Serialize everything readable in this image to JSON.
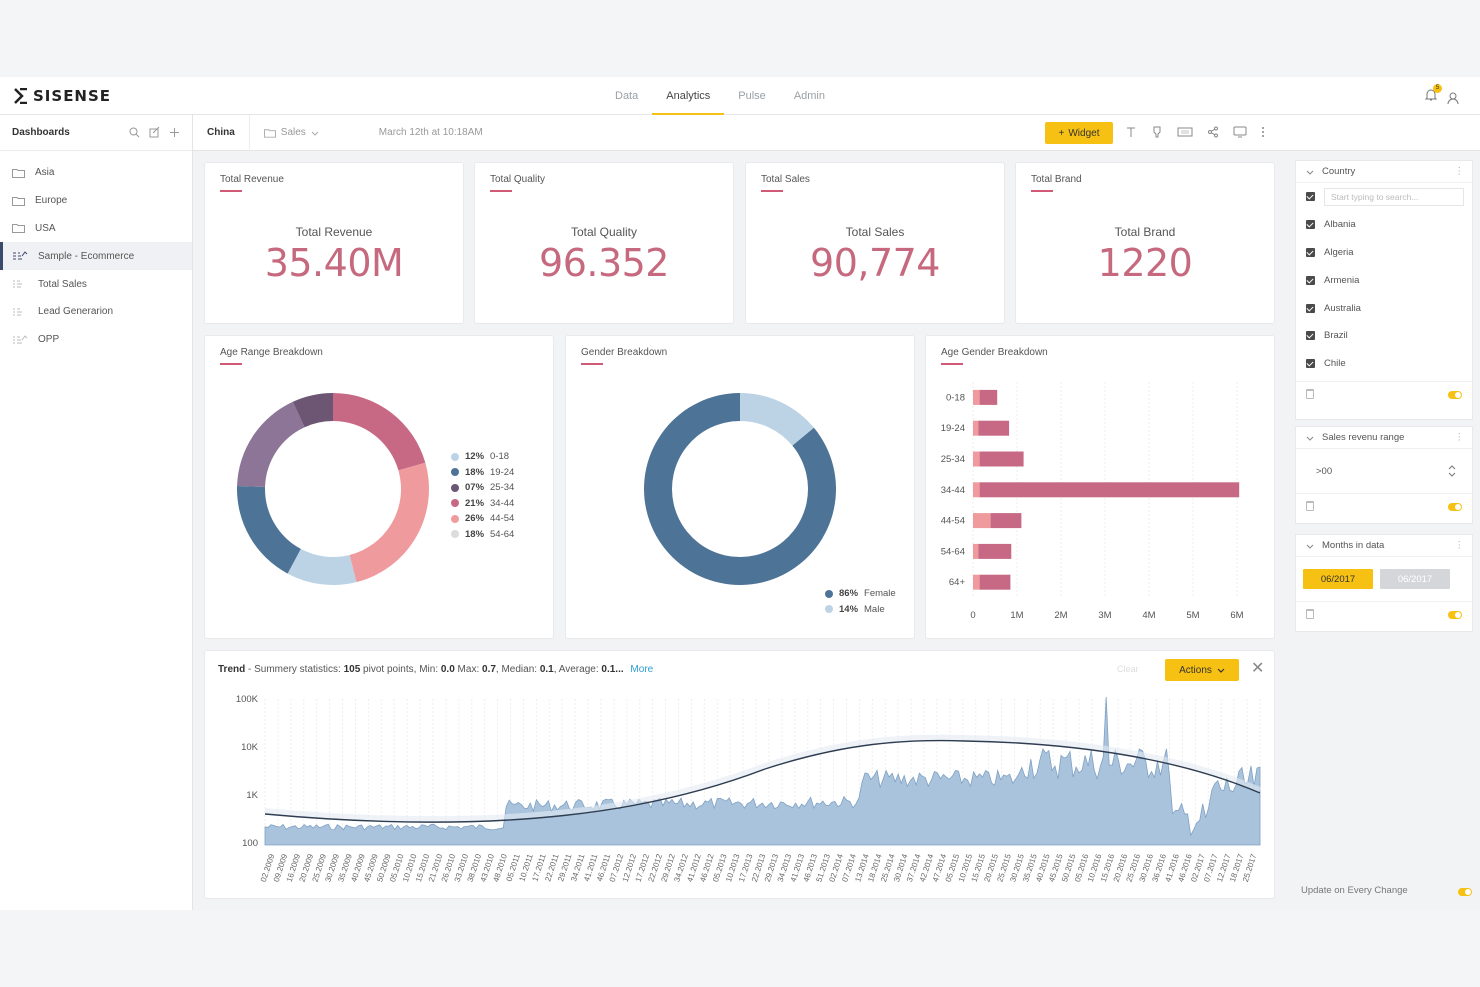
{
  "app": {
    "logo_text": "SISENSE",
    "notification_count": "5"
  },
  "nav": {
    "tabs": [
      {
        "label": "Data"
      },
      {
        "label": "Analytics"
      },
      {
        "label": "Pulse"
      },
      {
        "label": "Admin"
      }
    ],
    "active": "Analytics"
  },
  "sidebar": {
    "title": "Dashboards",
    "items": [
      {
        "label": "Asia",
        "icon": "folder-icon"
      },
      {
        "label": "Europe",
        "icon": "folder-icon"
      },
      {
        "label": "USA",
        "icon": "folder-icon"
      },
      {
        "label": "Sample - Ecommerce",
        "icon": "dashboard-icon"
      },
      {
        "label": "Total Sales",
        "icon": "dashboard-icon"
      },
      {
        "label": "Lead Generarion",
        "icon": "dashboard-icon"
      },
      {
        "label": "OPP",
        "icon": "dashboard-icon"
      }
    ],
    "active": "Sample - Ecommerce"
  },
  "toolbar": {
    "crumb": "China",
    "folder": "Sales",
    "date": "March 12th at 10:18AM",
    "widget_label": "Widget"
  },
  "kpis": [
    {
      "title": "Total Revenue",
      "label": "Total Revenue",
      "value": "35.40M"
    },
    {
      "title": "Total Quality",
      "label": "Total Quality",
      "value": "96.352"
    },
    {
      "title": "Total Sales",
      "label": "Total Sales",
      "value": "90,774"
    },
    {
      "title": "Total Brand",
      "label": "Total Brand",
      "value": "1220"
    }
  ],
  "charts": {
    "age_range": {
      "title": "Age Range Breakdown",
      "chart_data": {
        "type": "pie",
        "slices": [
          {
            "pct": "12%",
            "label": "0-18",
            "value": 12,
            "color": "#bcd3e6"
          },
          {
            "pct": "18%",
            "label": "19-24",
            "value": 18,
            "color": "#4d7396"
          },
          {
            "pct": "07%",
            "label": "25-34",
            "value": 7,
            "color": "#6c5674"
          },
          {
            "pct": "21%",
            "label": "34-44",
            "value": 21,
            "color": "#c76985"
          },
          {
            "pct": "26%",
            "label": "44-54",
            "value": 26,
            "color": "#ef9b9e"
          },
          {
            "pct": "18%",
            "label": "54-64",
            "value": 18,
            "color": "#dcdcdc"
          }
        ]
      }
    },
    "gender": {
      "title": "Gender Breakdown",
      "chart_data": {
        "type": "pie",
        "slices": [
          {
            "pct": "86%",
            "label": "Female",
            "value": 86,
            "color": "#4d7396"
          },
          {
            "pct": "14%",
            "label": "Male",
            "value": 14,
            "color": "#bcd3e6"
          }
        ]
      }
    },
    "age_gender": {
      "title": "Age Gender Breakdown",
      "chart_data": {
        "type": "bar",
        "orientation": "horizontal",
        "categories": [
          "0-18",
          "19-24",
          "25-34",
          "34-44",
          "44-54",
          "54-64",
          "64+"
        ],
        "series": [
          {
            "values": [
              0.15,
              0.12,
              0.15,
              0.15,
              0.4,
              0.12,
              0.15
            ],
            "color": "#ef9b9e"
          },
          {
            "values": [
              0.4,
              0.7,
              1.0,
              5.9,
              0.7,
              0.75,
              0.7
            ],
            "color": "#c76985"
          }
        ],
        "xticks": [
          "0",
          "1M",
          "2M",
          "3M",
          "4M",
          "5M",
          "6M"
        ],
        "xlim": [
          0,
          6
        ]
      }
    },
    "trend": {
      "summary_prefix": "Trend",
      "summary_text": " - Summery statistics: ",
      "pivot_count": "105",
      "pivot_text": " pivot points, Min: ",
      "min": "0.0",
      "max_label": " Max: ",
      "max": "0.7",
      "median_label": ", Median: ",
      "median": "0.1",
      "average_label": ", Average: ",
      "average": "0.1...",
      "more": "More",
      "clear": "Clear",
      "actions_label": "Actions",
      "chart_data": {
        "type": "area",
        "scale": "log",
        "yticks": [
          "100K",
          "10K",
          "1K",
          "100"
        ],
        "xticks": [
          "02.2009",
          "09.2009",
          "16.2009",
          "20.2009",
          "25.2009",
          "30.2009",
          "35.2009",
          "40.2009",
          "45.2009",
          "50.2009",
          "05.2010",
          "10.2010",
          "15.2010",
          "21.2010",
          "26.2010",
          "33.2010",
          "38.2010",
          "43.2010",
          "48.2010",
          "05.2011",
          "10.2011",
          "17.2011",
          "22.2011",
          "29.2011",
          "34.2011",
          "41.2011",
          "46.2011",
          "07.2012",
          "12.2012",
          "17.2012",
          "22.2012",
          "29.2012",
          "34.2012",
          "41.2012",
          "46.2012",
          "05.2013",
          "10.2013",
          "17.2013",
          "22.2013",
          "29.2013",
          "34.2013",
          "41.2013",
          "46.2013",
          "51.2013",
          "02.2014",
          "07.2014",
          "13.2014",
          "18.2014",
          "25.2014",
          "30.2014",
          "37.2014",
          "42.2014",
          "47.2014",
          "05.2015",
          "10.2015",
          "15.2015",
          "20.2015",
          "25.2015",
          "30.2015",
          "35.2015",
          "40.2015",
          "45.2015",
          "50.2015",
          "05.2016",
          "10.2016",
          "15.2016",
          "20.2016",
          "25.2016",
          "30.2016",
          "36.2016",
          "41.2016",
          "46.2016",
          "02.2017",
          "07.2017",
          "12.2017",
          "18.2017",
          "25.2017"
        ]
      }
    }
  },
  "filters": {
    "country": {
      "title": "Country",
      "placeholder": "Start typing to search...",
      "items": [
        "Albania",
        "Algeria",
        "Armenia",
        "Australia",
        "Brazil",
        "Chile"
      ]
    },
    "sales_range": {
      "title": "Sales revenu range",
      "value": ">00"
    },
    "months": {
      "title": "Months in data",
      "from": "06/2017",
      "to": "06/2017"
    },
    "update_label": "Update on Every Change"
  }
}
